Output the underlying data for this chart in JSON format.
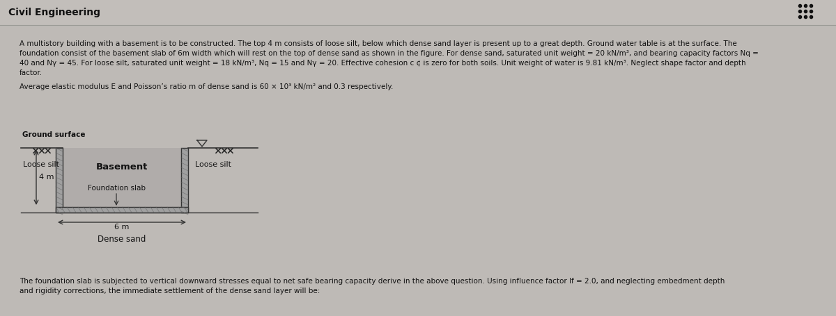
{
  "title": "Civil Engineering",
  "bg_color": "#bebab6",
  "header_bg": "#b8b4b0",
  "text_color": "#111111",
  "para1_lines": [
    "A multistory building with a basement is to be constructed. The top 4 m consists of loose silt, below which dense sand layer is present up to a great depth. Ground water table is at the surface. The",
    "foundation consist of the basement slab of 6m width which will rest on the top of dense sand as shown in the figure. For dense sand, saturated unit weight = 20 kN/m³, and bearing capacity factors Nq =",
    "40 and Nγ = 45. For loose silt, saturated unit weight = 18 kN/m³, Nq = 15 and Nγ = 20. Effective cohesion c ¢ is zero for both soils. Unit weight of water is 9.81 kN/m³. Neglect shape factor and depth",
    "factor."
  ],
  "para2": "Average elastic modulus E and Poisson’s ratio m of dense sand is 60 × 10³ kN/m² and 0.3 respectively.",
  "para3_lines": [
    "The foundation slab is subjected to vertical downward stresses equal to net safe bearing capacity derive in the above question. Using influence factor If = 2.0, and neglecting embedment depth",
    "and rigidity corrections, the immediate settlement of the dense sand layer will be:"
  ],
  "ground_surface_label": "Ground surface",
  "loose_silt_left": "Loose silt",
  "loose_silt_right": "Loose silt",
  "basement_label": "Basement",
  "foundation_slab_label": "Foundation slab",
  "depth_label": "4 m",
  "width_label": "6 m",
  "dense_sand_label": "Dense sand",
  "dots_color": "#111111",
  "line_color": "#555555",
  "struct_color": "#888888",
  "hatch_bg": "#a0a0a0"
}
